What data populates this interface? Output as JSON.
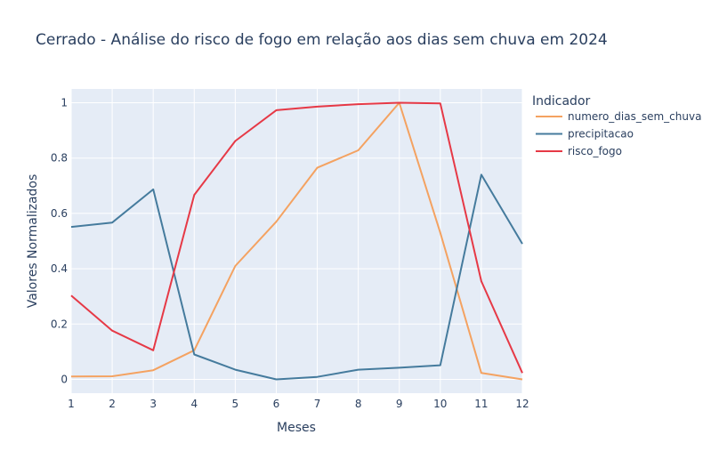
{
  "chart_data": {
    "type": "line",
    "title": "Cerrado - Análise do risco de fogo em relação aos dias sem chuva em 2024",
    "xlabel": "Meses",
    "ylabel": "Valores Normalizados",
    "x": [
      1,
      2,
      3,
      4,
      5,
      6,
      7,
      8,
      9,
      10,
      11,
      12
    ],
    "xlim": [
      1,
      12
    ],
    "ylim": [
      -0.05,
      1.05
    ],
    "xticks": [
      "1",
      "2",
      "3",
      "4",
      "5",
      "6",
      "7",
      "8",
      "9",
      "10",
      "11",
      "12"
    ],
    "yticks": [
      0,
      0.2,
      0.4,
      0.6,
      0.8,
      1
    ],
    "ytick_labels": [
      "0",
      "0.2",
      "0.4",
      "0.6",
      "0.8",
      "1"
    ],
    "grid": true,
    "plot_background": "#e5ecf6",
    "legend_title": "Indicador",
    "legend_position": "right",
    "series": [
      {
        "name": "numero_dias_sem_chuva",
        "color": "#f4a261",
        "values": [
          0.01,
          0.011,
          0.033,
          0.105,
          0.41,
          0.57,
          0.765,
          0.828,
          1.0,
          0.53,
          0.023,
          0.0
        ]
      },
      {
        "name": "precipitacao",
        "color": "#457b9d",
        "values": [
          0.551,
          0.567,
          0.687,
          0.09,
          0.035,
          0.0,
          0.009,
          0.035,
          0.042,
          0.051,
          0.74,
          0.49
        ]
      },
      {
        "name": "risco_fogo",
        "color": "#e63946",
        "values": [
          0.303,
          0.176,
          0.105,
          0.667,
          0.862,
          0.973,
          0.986,
          0.995,
          1.0,
          0.998,
          0.355,
          0.023
        ]
      }
    ]
  }
}
